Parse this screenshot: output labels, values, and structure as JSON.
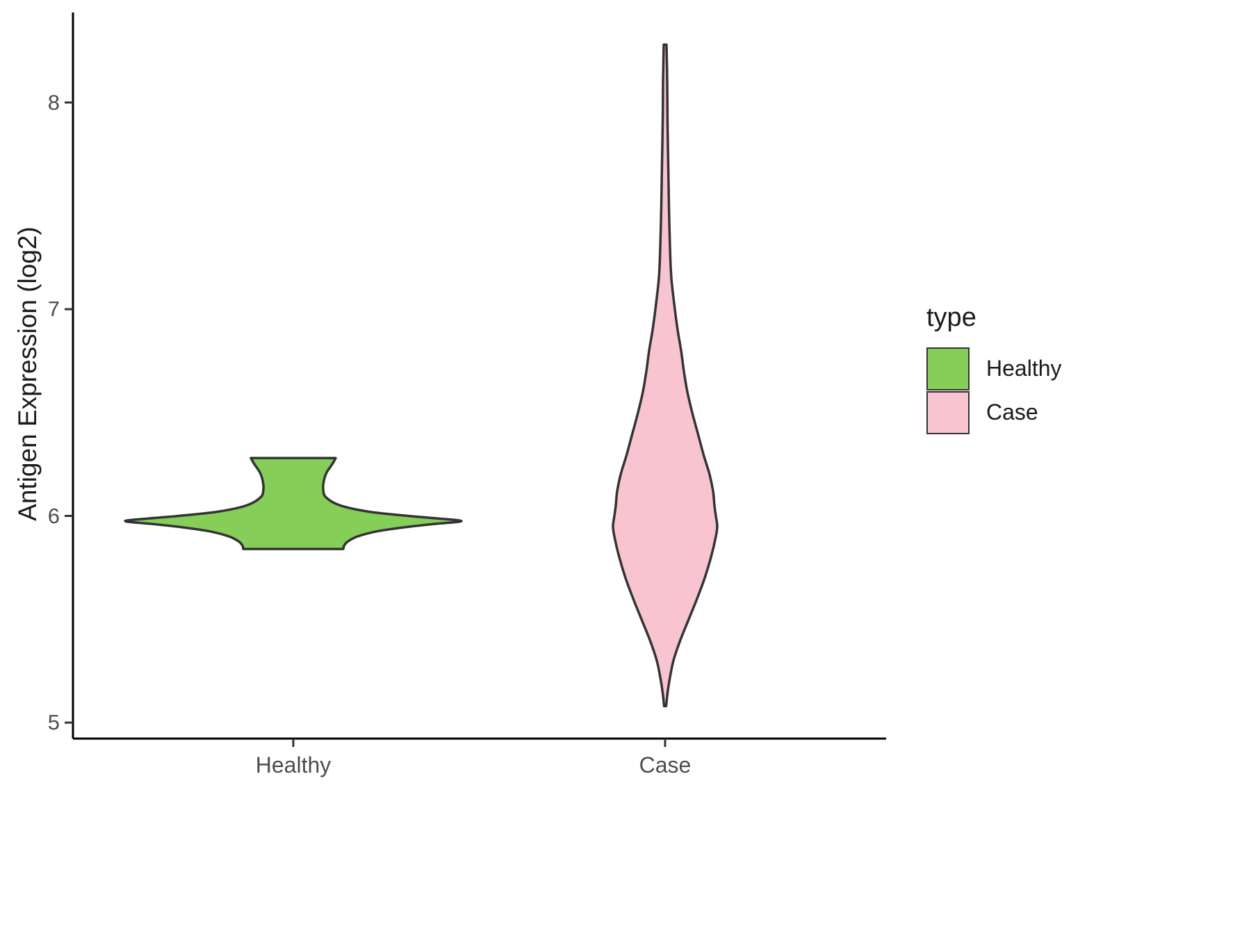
{
  "chart_data": {
    "type": "violin",
    "title": "",
    "xlabel": "",
    "ylabel": "Antigen Expression (log2)",
    "ylim": [
      4.92,
      8.45
    ],
    "yticks": [
      5,
      6,
      7,
      8
    ],
    "categories": [
      "Healthy",
      "Case"
    ],
    "grid": false,
    "background": "#FFFFFF",
    "axis_color": "#000000",
    "tick_label_color": "#4d4d4d",
    "legend": {
      "title": "type",
      "position": "right",
      "entries": [
        {
          "label": "Healthy",
          "color": "#85CF58"
        },
        {
          "label": "Case",
          "color": "#F8C4CF"
        }
      ]
    },
    "series": [
      {
        "name": "Healthy",
        "fill": "#85CF58",
        "outline": "#333333",
        "value_range": [
          5.84,
          6.28
        ],
        "profile": [
          [
            6.28,
            61
          ],
          [
            6.25,
            56
          ],
          [
            6.21,
            48
          ],
          [
            6.17,
            44
          ],
          [
            6.13,
            43
          ],
          [
            6.09,
            47
          ],
          [
            6.05,
            68
          ],
          [
            6.02,
            110
          ],
          [
            6.0,
            165
          ],
          [
            5.99,
            200
          ],
          [
            5.975,
            242
          ],
          [
            5.96,
            200
          ],
          [
            5.945,
            160
          ],
          [
            5.925,
            120
          ],
          [
            5.9,
            92
          ],
          [
            5.875,
            78
          ],
          [
            5.855,
            73
          ],
          [
            5.84,
            72
          ]
        ]
      },
      {
        "name": "Case",
        "fill": "#F8C4CF",
        "outline": "#333333",
        "value_range": [
          5.08,
          8.28
        ],
        "profile": [
          [
            8.28,
            2
          ],
          [
            8.1,
            3
          ],
          [
            7.9,
            3.5
          ],
          [
            7.7,
            4.5
          ],
          [
            7.5,
            5.5
          ],
          [
            7.3,
            7
          ],
          [
            7.15,
            9
          ],
          [
            7.0,
            14
          ],
          [
            6.9,
            18
          ],
          [
            6.8,
            23
          ],
          [
            6.7,
            27
          ],
          [
            6.6,
            32
          ],
          [
            6.5,
            39
          ],
          [
            6.4,
            47
          ],
          [
            6.3,
            55
          ],
          [
            6.2,
            64
          ],
          [
            6.12,
            69
          ],
          [
            6.05,
            71
          ],
          [
            6.0,
            73
          ],
          [
            5.95,
            75
          ],
          [
            5.9,
            73
          ],
          [
            5.8,
            66
          ],
          [
            5.7,
            57
          ],
          [
            5.6,
            46
          ],
          [
            5.5,
            34
          ],
          [
            5.4,
            22
          ],
          [
            5.3,
            12
          ],
          [
            5.2,
            6
          ],
          [
            5.13,
            3
          ],
          [
            5.08,
            1.5
          ]
        ]
      }
    ]
  }
}
